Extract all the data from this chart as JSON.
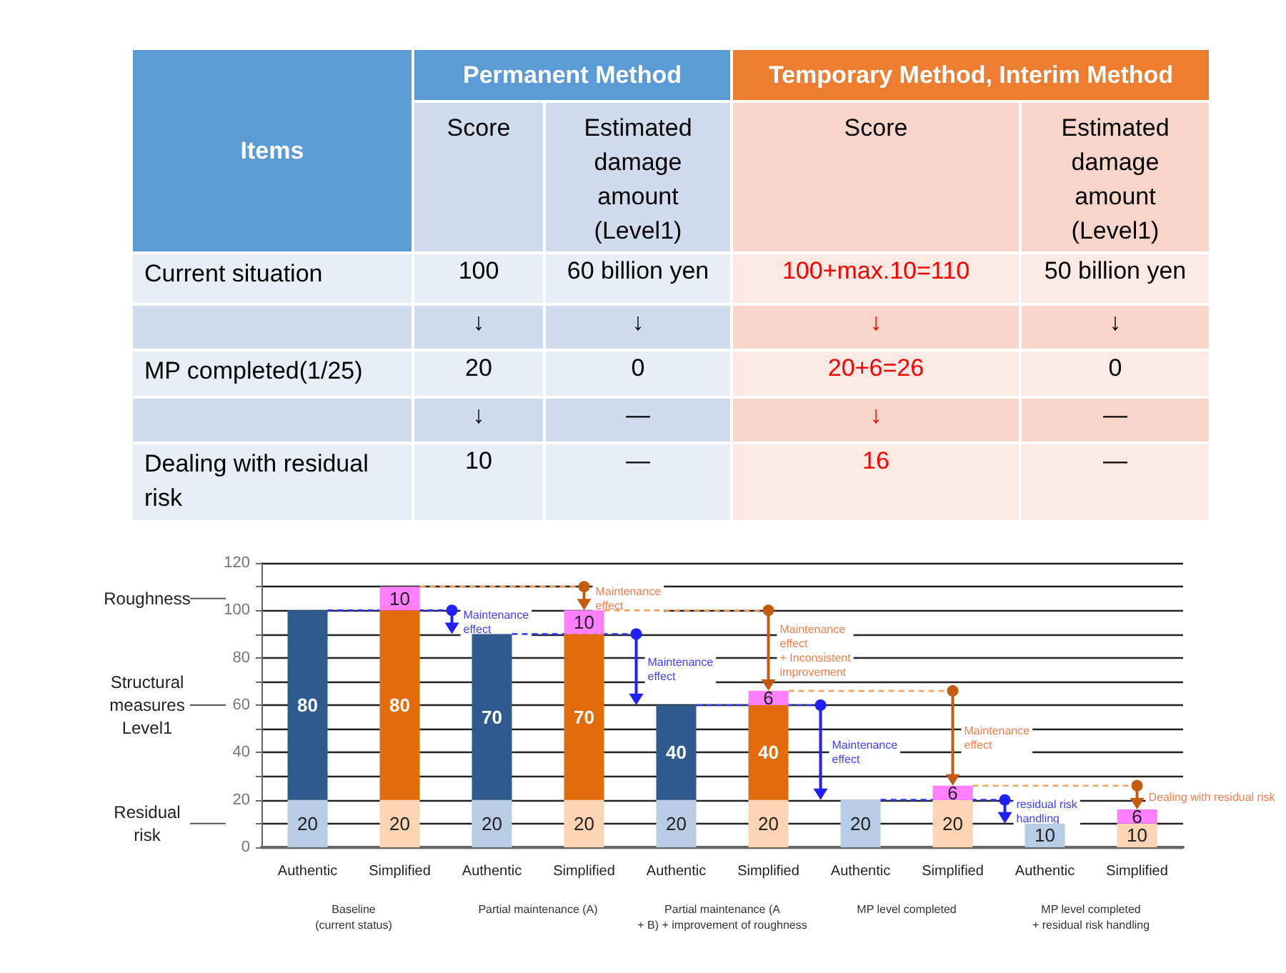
{
  "chart_data": [
    {
      "type": "other",
      "categories": [
        "Items",
        "Score",
        "Estimated damage amount (Level1)",
        "Score",
        "Estimated damage amount (Level1)"
      ],
      "y_categories": [
        "Current situation",
        null,
        "MP completed(1/25)",
        null,
        "Dealing with residual risk"
      ],
      "cell_labels": [
        [
          "100",
          "60 billion yen",
          "100+max.10=110",
          "50 billion yen"
        ],
        [
          "↓",
          "↓",
          "↓",
          "↓"
        ],
        [
          "20",
          "0",
          "20+6=26",
          "0"
        ],
        [
          "↓",
          "—",
          "↓",
          "—"
        ],
        [
          "10",
          "—",
          "16",
          "—"
        ]
      ],
      "annotations": [
        "Permanent Method",
        "Temporary Method, Interim Method"
      ]
    },
    {
      "type": "bar",
      "stacked": true,
      "categories": [
        "Authentic",
        "Simplified",
        "Authentic",
        "Simplified",
        "Authentic",
        "Simplified",
        "Authentic",
        "Simplified",
        "Authentic",
        "Simplified"
      ],
      "series": [
        {
          "colors": [
            "#b8cce4",
            "#fbd4b4",
            "#b8cce4",
            "#fbd4b4",
            "#b8cce4",
            "#fbd4b4",
            "#b8cce4",
            "#fbd4b4",
            "#b8cce4",
            "#fbd4b4"
          ],
          "values": [
            20,
            20,
            20,
            20,
            20,
            20,
            20,
            20,
            10,
            10
          ]
        },
        {
          "colors": [
            "#2e5a8e",
            "#e36c0a",
            "#2e5a8e",
            "#e36c0a",
            "#2e5a8e",
            "#e36c0a",
            "#2e5a8e",
            "#e36c0a",
            "#2e5a8e",
            "#e36c0a"
          ],
          "values": [
            80,
            80,
            70,
            70,
            40,
            40,
            null,
            null,
            null,
            null
          ]
        },
        {
          "color": "#ff7fff",
          "values": [
            null,
            10,
            null,
            10,
            null,
            6,
            null,
            6,
            null,
            6
          ]
        }
      ],
      "ylim": [
        0,
        120
      ],
      "yticks": [
        0,
        {
          "value": 10,
          "label": null
        },
        20,
        {
          "value": 30,
          "label": null
        },
        40,
        {
          "value": 50,
          "label": null
        },
        60,
        {
          "value": 70,
          "label": null
        },
        80,
        {
          "value": 90,
          "label": null
        },
        100,
        {
          "value": 110,
          "label": null
        },
        120
      ],
      "grid": "y",
      "data_labels": true,
      "annotations": [
        "Roughness",
        "Structural measures Level1",
        "Residual risk",
        "Maintenance effect",
        "Maintenance effect",
        "Maintenance effect",
        "Maintenance effect + Inconsistent improvement",
        "Maintenance effect",
        "Maintenance effect",
        "residual risk handling",
        "Dealing with residual risk",
        "Baseline (current status)",
        "Partial maintenance (A)",
        "Partial maintenance (A + B) + improvement of roughness",
        "MP level completed",
        "MP level completed + residual risk handling"
      ]
    }
  ]
}
